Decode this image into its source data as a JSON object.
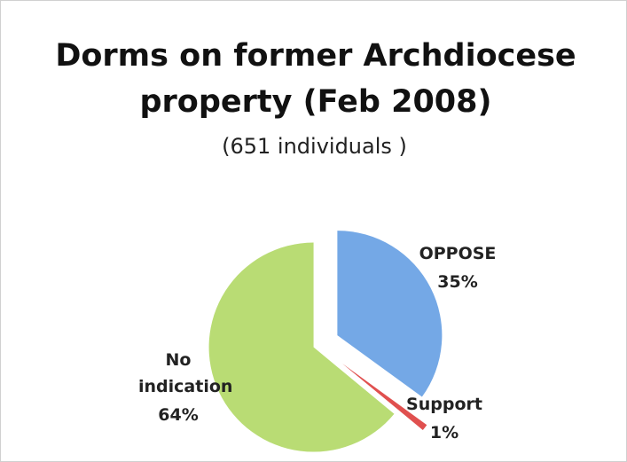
{
  "chart_data": {
    "type": "pie",
    "title": "Dorms on former Archdiocese property (Feb 2008)",
    "subtitle": "(651 individuals )",
    "categories": [
      "OPPOSE",
      "Support",
      "No indication"
    ],
    "values": [
      35,
      1,
      64
    ],
    "value_labels": [
      "35%",
      "1%",
      "64%"
    ],
    "colors": [
      "#74a8e6",
      "#e0504f",
      "#b9dc74"
    ]
  }
}
